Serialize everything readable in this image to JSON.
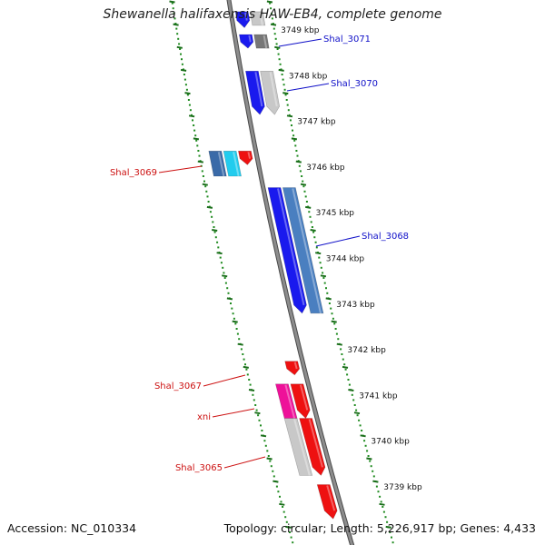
{
  "title": "Shewanella halifaxensis HAW-EB4, complete genome",
  "footer": {
    "accession": "Accession: NC_010334",
    "stats": "Topology: circular; Length: 5,226,917 bp; Genes: 4,433"
  },
  "colors": {
    "backbone": "#8c8c8c",
    "scale_dots": "#1f8a1f",
    "label_forward": "#1010c8",
    "label_reverse": "#cc1010"
  },
  "ticks": [
    "3749 kbp",
    "3748 kbp",
    "3747 kbp",
    "3746 kbp",
    "3745 kbp",
    "3744 kbp",
    "3743 kbp",
    "3742 kbp",
    "3741 kbp",
    "3740 kbp",
    "3739 kbp"
  ],
  "forward_gene_labels": [
    "Shal_3071",
    "Shal_3070",
    "Shal_3068"
  ],
  "reverse_gene_labels": [
    "Shal_3069",
    "Shal_3067",
    "xni",
    "Shal_3065"
  ],
  "forward_features": [
    {
      "strand_ring": 1,
      "start": 3749.4,
      "end": 3749.05,
      "color": "#1a1aee",
      "arrow": true
    },
    {
      "strand_ring": 2,
      "start": 3749.4,
      "end": 3749.1,
      "color": "#c8c8c8",
      "arrow": false
    },
    {
      "strand_ring": 1,
      "start": 3748.9,
      "end": 3748.6,
      "color": "#1a1aee",
      "arrow": true
    },
    {
      "strand_ring": 2,
      "start": 3748.9,
      "end": 3748.6,
      "color": "#777777",
      "arrow": false
    },
    {
      "strand_ring": 1,
      "start": 3748.1,
      "end": 3747.15,
      "color": "#1a1aee",
      "arrow": true
    },
    {
      "strand_ring": 2,
      "start": 3748.1,
      "end": 3747.15,
      "color": "#c8c8c8",
      "arrow": true
    },
    {
      "strand_ring": 1,
      "start": 3745.55,
      "end": 3742.8,
      "color": "#1a1aee",
      "arrow": true
    },
    {
      "strand_ring": 2,
      "start": 3745.55,
      "end": 3742.8,
      "color": "#4a7fc0",
      "arrow": false
    }
  ],
  "reverse_features": [
    {
      "strand_ring": 1,
      "start": 3746.35,
      "end": 3746.05,
      "color": "#ee1111",
      "arrow": true
    },
    {
      "strand_ring": 2,
      "start": 3746.35,
      "end": 3745.8,
      "color": "#22ccee",
      "arrow": false
    },
    {
      "strand_ring": 3,
      "start": 3746.35,
      "end": 3745.8,
      "color": "#3a6aa8",
      "arrow": false
    },
    {
      "strand_ring": 1,
      "start": 3741.75,
      "end": 3741.45,
      "color": "#ee1111",
      "arrow": true
    },
    {
      "strand_ring": 1,
      "start": 3741.25,
      "end": 3740.5,
      "color": "#ee1111",
      "arrow": true
    },
    {
      "strand_ring": 2,
      "start": 3741.25,
      "end": 3740.5,
      "color": "#ee1199",
      "arrow": false
    },
    {
      "strand_ring": 1,
      "start": 3740.5,
      "end": 3739.25,
      "color": "#ee1111",
      "arrow": true
    },
    {
      "strand_ring": 2,
      "start": 3740.5,
      "end": 3739.25,
      "color": "#c8c8c8",
      "arrow": false
    },
    {
      "strand_ring": 1,
      "start": 3739.05,
      "end": 3738.3,
      "color": "#ee1111",
      "arrow": true
    }
  ]
}
